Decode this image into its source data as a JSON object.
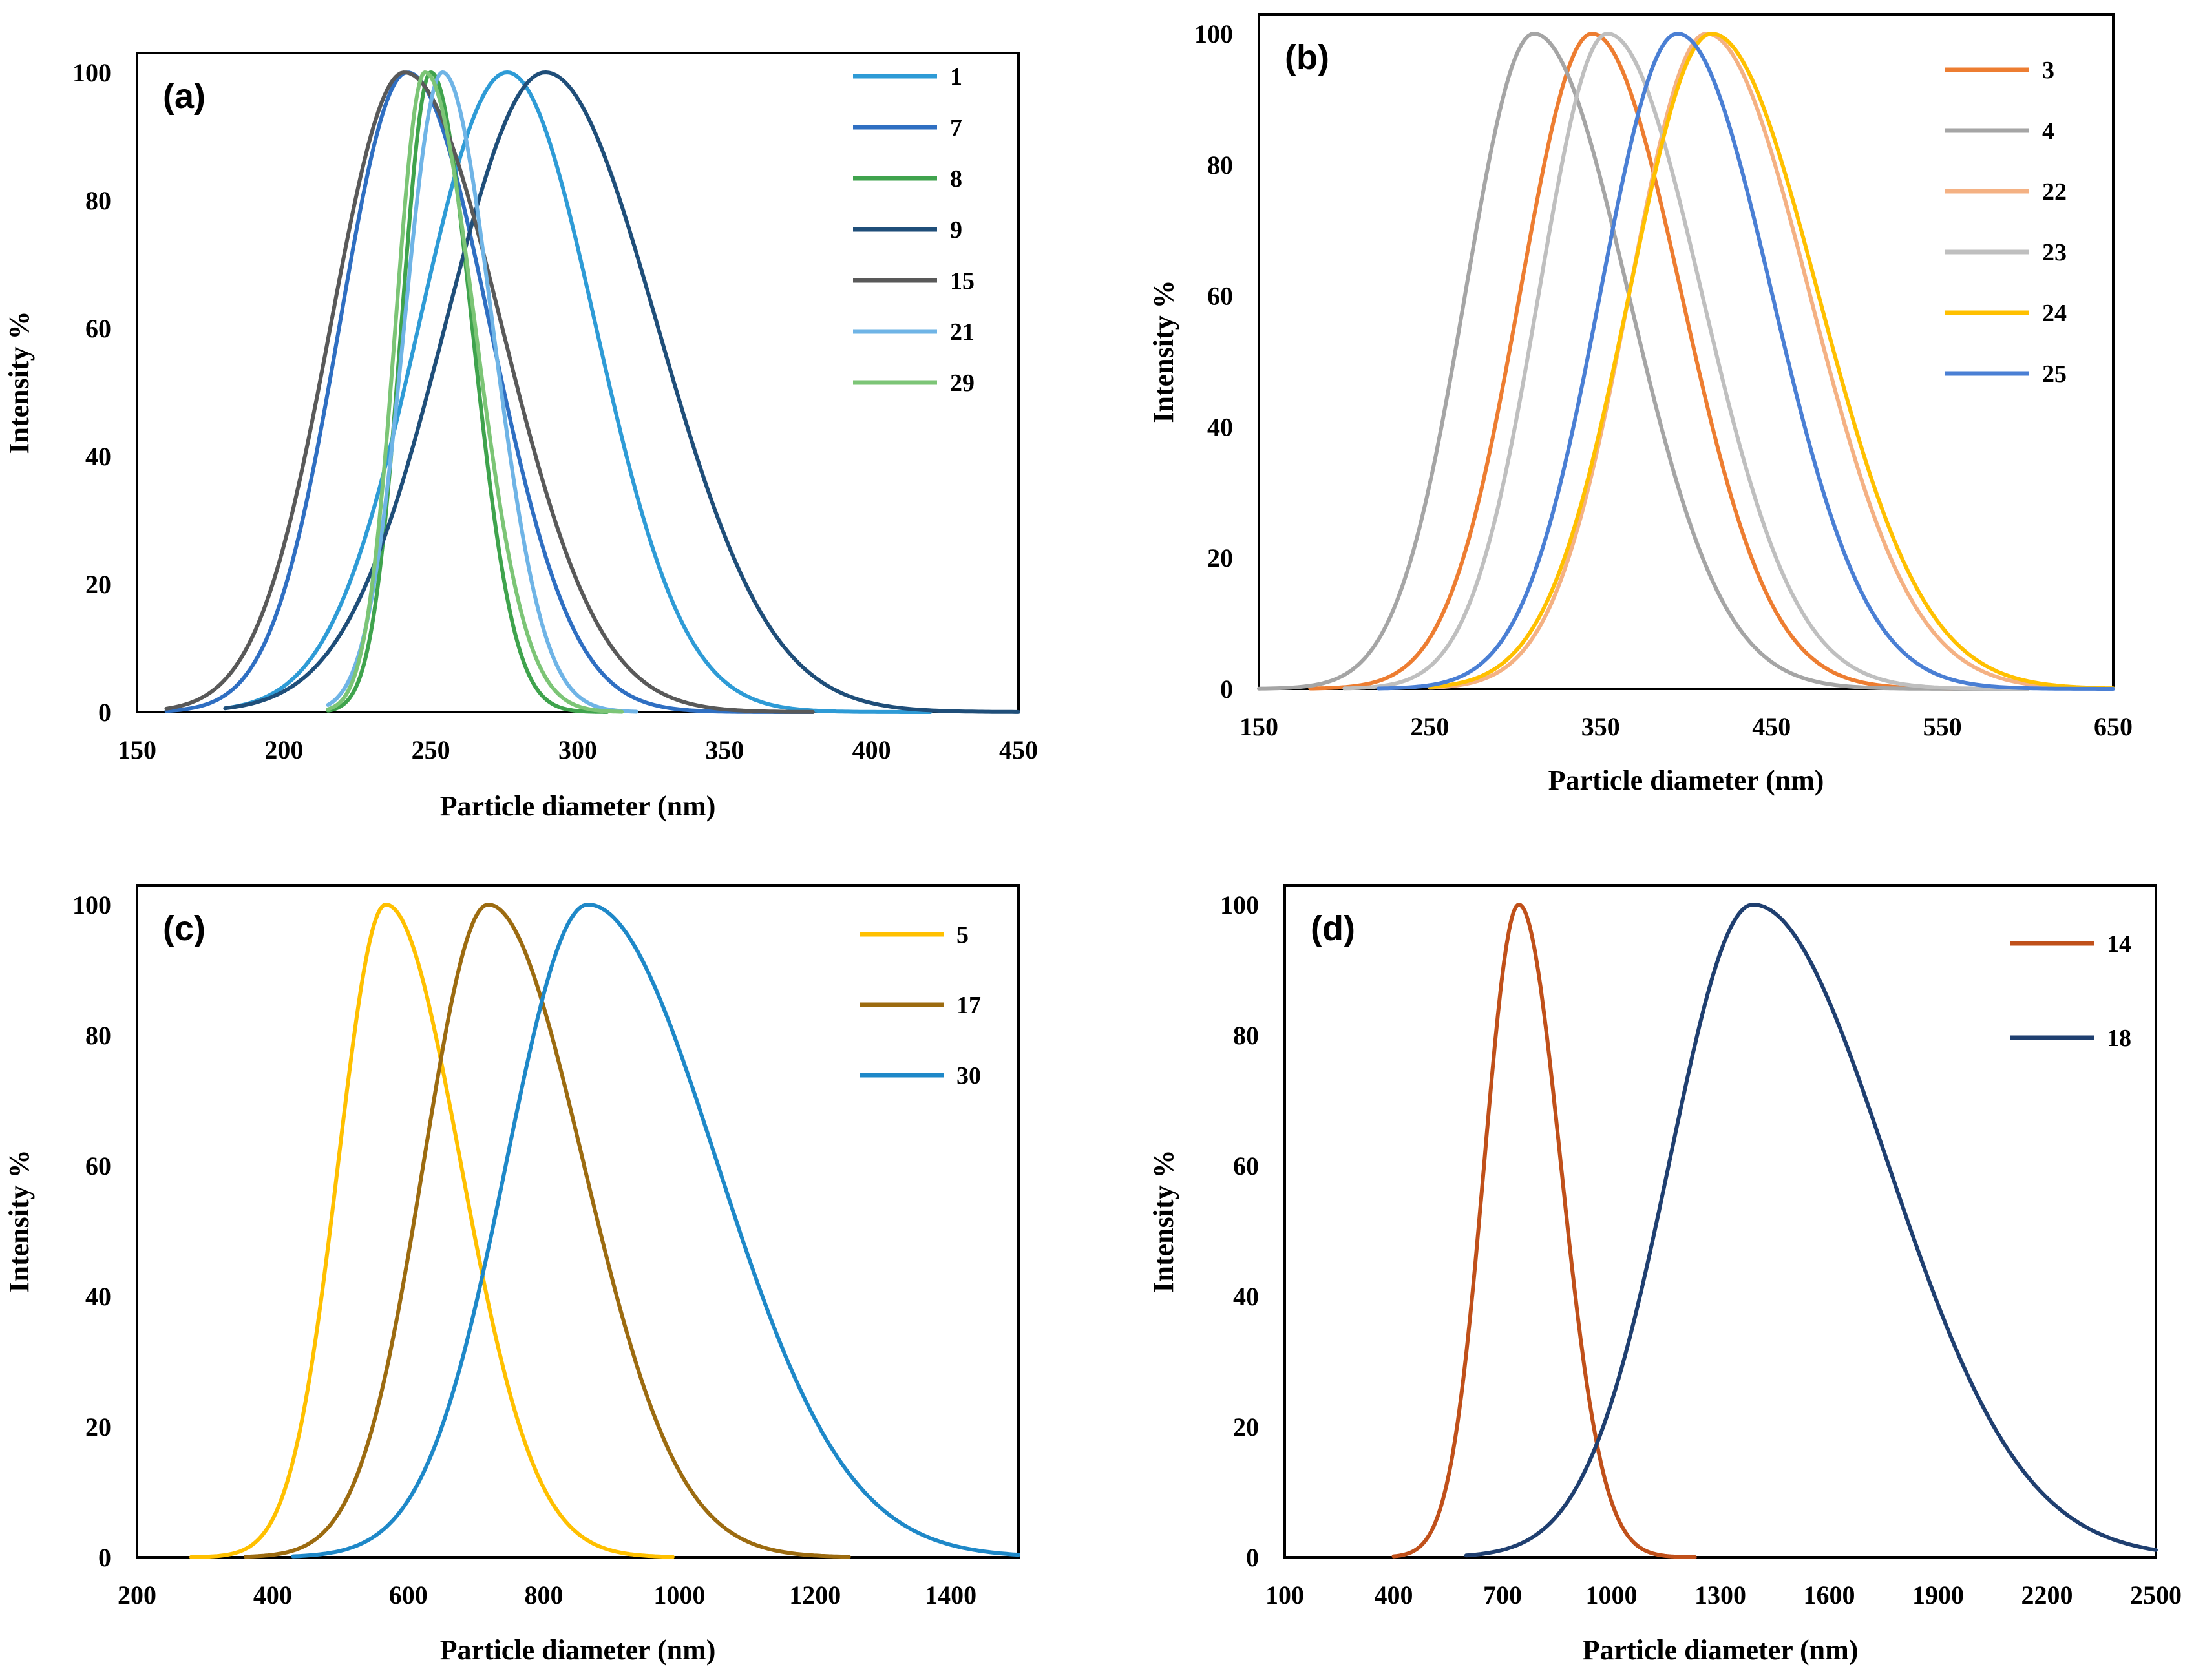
{
  "chart_data": [
    {
      "type": "line",
      "panel_label": "(a)",
      "xlabel": "Particle diameter (nm)",
      "ylabel": "Intensity %",
      "xlim": [
        150,
        450
      ],
      "ylim": [
        0,
        100
      ],
      "xticks": [
        150,
        200,
        250,
        300,
        350,
        400,
        450
      ],
      "yticks": [
        0,
        20,
        40,
        60,
        80,
        100
      ],
      "legend_position": "top-right",
      "series": [
        {
          "name": "1",
          "color": "#2E9BD6",
          "peak": 276,
          "sigma_left": 30,
          "sigma_right": 30,
          "range": [
            180,
            420
          ]
        },
        {
          "name": "7",
          "color": "#2F6FC2",
          "peak": 242,
          "sigma_left": 23,
          "sigma_right": 28,
          "range": [
            160,
            380
          ]
        },
        {
          "name": "8",
          "color": "#3FA34D",
          "peak": 250,
          "sigma_left": 10,
          "sigma_right": 14,
          "range": [
            215,
            310
          ]
        },
        {
          "name": "9",
          "color": "#1F4E79",
          "peak": 289,
          "sigma_left": 34,
          "sigma_right": 38,
          "range": [
            180,
            450
          ]
        },
        {
          "name": "15",
          "color": "#595959",
          "peak": 241,
          "sigma_left": 25,
          "sigma_right": 33,
          "range": [
            160,
            380
          ]
        },
        {
          "name": "21",
          "color": "#6FB4E6",
          "peak": 254,
          "sigma_left": 13,
          "sigma_right": 17,
          "range": [
            215,
            320
          ]
        },
        {
          "name": "29",
          "color": "#7CC576",
          "peak": 248,
          "sigma_left": 10,
          "sigma_right": 17,
          "range": [
            215,
            315
          ]
        }
      ]
    },
    {
      "type": "line",
      "panel_label": "(b)",
      "xlabel": "Particle diameter (nm)",
      "ylabel": "Intensity %",
      "xlim": [
        150,
        650
      ],
      "ylim": [
        0,
        100
      ],
      "xticks": [
        150,
        250,
        350,
        450,
        550,
        650
      ],
      "yticks": [
        0,
        20,
        40,
        60,
        80,
        100
      ],
      "legend_position": "top-right",
      "series": [
        {
          "name": "3",
          "color": "#ED7D31",
          "peak": 345,
          "sigma_left": 42,
          "sigma_right": 52,
          "range": [
            180,
            600
          ]
        },
        {
          "name": "4",
          "color": "#A5A5A5",
          "peak": 311,
          "sigma_left": 40,
          "sigma_right": 55,
          "range": [
            150,
            600
          ]
        },
        {
          "name": "22",
          "color": "#F4B183",
          "peak": 412,
          "sigma_left": 45,
          "sigma_right": 60,
          "range": [
            250,
            650
          ]
        },
        {
          "name": "23",
          "color": "#BFBFBF",
          "peak": 354,
          "sigma_left": 40,
          "sigma_right": 55,
          "range": [
            200,
            600
          ]
        },
        {
          "name": "24",
          "color": "#FFC000",
          "peak": 415,
          "sigma_left": 48,
          "sigma_right": 62,
          "range": [
            250,
            650
          ]
        },
        {
          "name": "25",
          "color": "#4A7FD4",
          "peak": 395,
          "sigma_left": 45,
          "sigma_right": 55,
          "range": [
            220,
            650
          ]
        }
      ]
    },
    {
      "type": "line",
      "panel_label": "(c)",
      "xlabel": "Particle diameter (nm)",
      "ylabel": "Intensity %",
      "xlim": [
        200,
        1500
      ],
      "ylim": [
        0,
        100
      ],
      "xticks": [
        200,
        400,
        600,
        800,
        1000,
        1200,
        1400
      ],
      "yticks": [
        0,
        20,
        40,
        60,
        80,
        100
      ],
      "legend_position": "top-right",
      "series": [
        {
          "name": "5",
          "color": "#FFC000",
          "peak": 567,
          "sigma_left": 70,
          "sigma_right": 110,
          "range": [
            280,
            990
          ]
        },
        {
          "name": "17",
          "color": "#9C6B10",
          "peak": 718,
          "sigma_left": 95,
          "sigma_right": 140,
          "range": [
            360,
            1250
          ]
        },
        {
          "name": "30",
          "color": "#1E88C8",
          "peak": 865,
          "sigma_left": 120,
          "sigma_right": 190,
          "range": [
            430,
            1500
          ]
        }
      ]
    },
    {
      "type": "line",
      "panel_label": "(d)",
      "xlabel": "Particle diameter (nm)",
      "ylabel": "Intensity %",
      "xlim": [
        100,
        2500
      ],
      "ylim": [
        0,
        100
      ],
      "xticks": [
        100,
        400,
        700,
        1000,
        1300,
        1600,
        1900,
        2200,
        2500
      ],
      "yticks": [
        0,
        20,
        40,
        60,
        80,
        100
      ],
      "legend_position": "top-right",
      "series": [
        {
          "name": "14",
          "color": "#C0501A",
          "peak": 745,
          "sigma_left": 95,
          "sigma_right": 115,
          "range": [
            400,
            1230
          ]
        },
        {
          "name": "18",
          "color": "#1F3F70",
          "peak": 1390,
          "sigma_left": 230,
          "sigma_right": 370,
          "range": [
            600,
            2500
          ]
        }
      ]
    }
  ]
}
